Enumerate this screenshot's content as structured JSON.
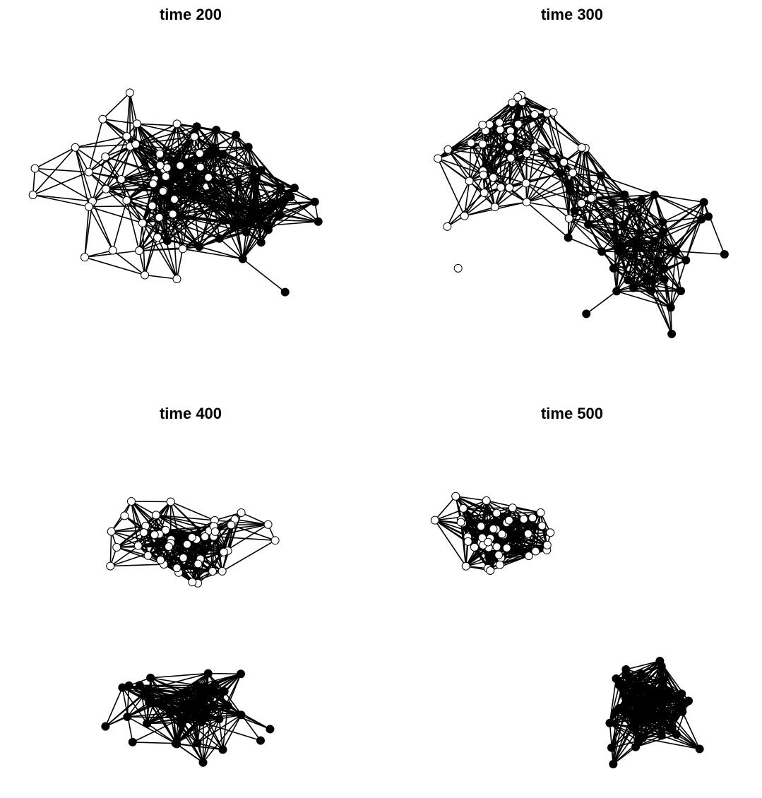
{
  "figure": {
    "panels": [
      {
        "title": "time 200",
        "stage": 0
      },
      {
        "title": "time 300",
        "stage": 1
      },
      {
        "title": "time 400",
        "stage": 2
      },
      {
        "title": "time 500",
        "stage": 3
      }
    ],
    "colors": {
      "background": "#ffffff",
      "edge": "#000000",
      "node_fill_a": "#ffffff",
      "node_fill_b": "#000000",
      "node_stroke": "#000000"
    },
    "node_groups": [
      "open circle",
      "filled circle"
    ]
  }
}
